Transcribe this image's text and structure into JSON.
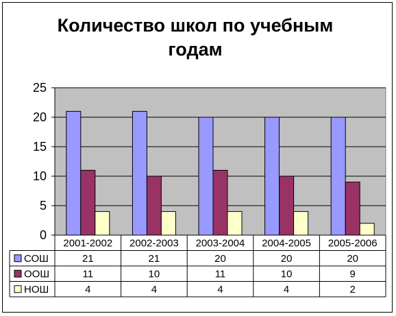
{
  "chart_data": {
    "type": "bar",
    "title_lines": [
      "Количество школ по учебным",
      "годам"
    ],
    "categories": [
      "2001-2002",
      "2002-2003",
      "2003-2004",
      "2004-2005",
      "2005-2006"
    ],
    "series": [
      {
        "name": "СОШ",
        "values": [
          21,
          21,
          20,
          20,
          20
        ],
        "color": "#9999ff"
      },
      {
        "name": "ООШ",
        "values": [
          11,
          10,
          11,
          10,
          9
        ],
        "color": "#993366"
      },
      {
        "name": "НОШ",
        "values": [
          4,
          4,
          4,
          4,
          2
        ],
        "color": "#ffffcc"
      }
    ],
    "ylim": [
      0,
      25
    ],
    "yticks": [
      0,
      5,
      10,
      15,
      20,
      25
    ],
    "plot_background": "#c0c0c0",
    "grid": true,
    "data_table": true
  }
}
